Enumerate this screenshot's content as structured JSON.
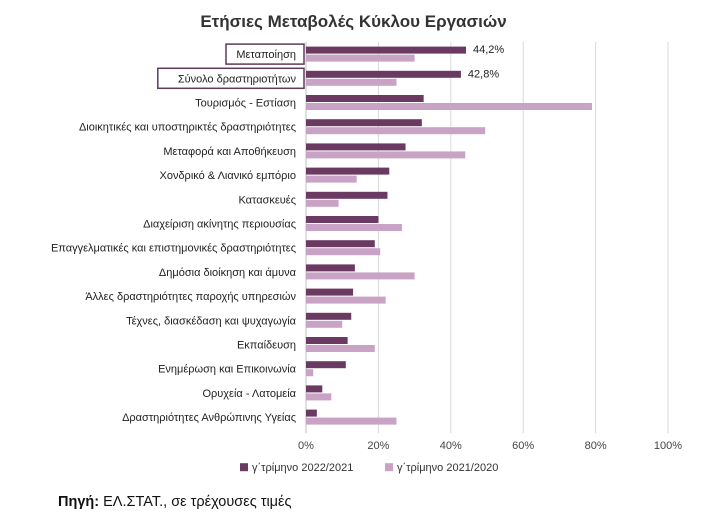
{
  "chart_data": {
    "type": "bar",
    "orientation": "horizontal",
    "title": "Ετήσιες Μεταβολές Κύκλου Εργασιών",
    "categories": [
      "Μεταποίηση",
      "Σύνολο δραστηριοτήτων",
      "Τουρισμός - Εστίαση",
      "Διοικητικές και υποστηρικτές δραστηριότητες",
      "Μεταφορά και Αποθήκευση",
      "Χονδρικό & Λιανικό εμπόριο",
      "Κατασκευές",
      "Διαχείριση ακίνητης περιουσίας",
      "Επαγγελματικές και επιστημονικές δραστηριότητες",
      "Δημόσια διοίκηση και άμυνα",
      "Άλλες δραστηριότητες παροχής υπηρεσιών",
      "Τέχνες, διασκέδαση και ψυχαγωγία",
      "Εκπαίδευση",
      "Ενημέρωση και Επικοινωνία",
      "Ορυχεία - Λατομεία",
      "Δραστηριότητες Ανθρώπινης Υγείας"
    ],
    "series": [
      {
        "name": "γ΄τρίμηνο 2022/2021",
        "color": "#6b3a63",
        "values": [
          44.2,
          42.8,
          32.5,
          32.0,
          27.5,
          23.0,
          22.5,
          20.0,
          19.0,
          13.5,
          13.0,
          12.5,
          11.5,
          11.0,
          4.5,
          3.0
        ]
      },
      {
        "name": "γ΄τρίμηνο 2021/2020",
        "color": "#c9a3c5",
        "values": [
          30.0,
          25.0,
          79.0,
          49.5,
          44.0,
          14.0,
          9.0,
          26.5,
          20.5,
          30.0,
          22.0,
          10.0,
          19.0,
          2.0,
          7.0,
          25.0
        ]
      }
    ],
    "data_labels": [
      {
        "category": "Μεταποίηση",
        "series": "γ΄τρίμηνο 2022/2021",
        "text": "44,2%"
      },
      {
        "category": "Σύνολο δραστηριοτήτων",
        "series": "γ΄τρίμηνο 2022/2021",
        "text": "42,8%"
      }
    ],
    "highlighted_categories": [
      "Μεταποίηση",
      "Σύνολο δραστηριοτήτων"
    ],
    "xlim": [
      0,
      100
    ],
    "xticks": [
      0,
      20,
      40,
      60,
      80,
      100
    ],
    "xtick_labels": [
      "0%",
      "20%",
      "40%",
      "60%",
      "80%",
      "100%"
    ],
    "grid": true,
    "legend_position": "bottom"
  },
  "source": {
    "label": "Πηγή:",
    "text": " ΕΛ.ΣΤΑΤ., σε τρέχουσες τιμές"
  }
}
